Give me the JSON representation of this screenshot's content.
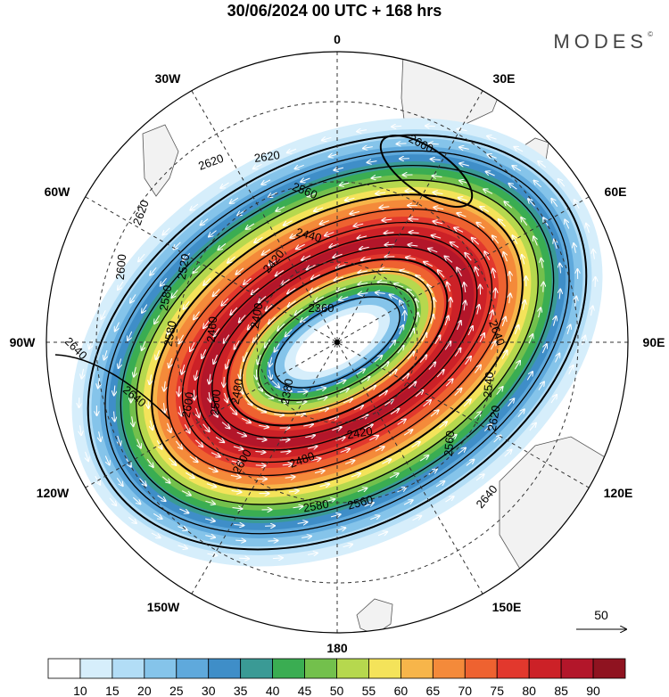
{
  "header": {
    "title": "30/06/2024  00 UTC  + 168 hrs",
    "brand": "MODES",
    "brand_mark": "©"
  },
  "map": {
    "projection": "south polar stereographic",
    "meridian_labels": [
      "0",
      "30E",
      "60E",
      "90E",
      "120E",
      "150E",
      "180",
      "150W",
      "120W",
      "90W",
      "60W",
      "30W"
    ],
    "field_shaded": "wind speed",
    "field_contoured": "geopotential height",
    "contour_labels": [
      "2660",
      "2620",
      "2620",
      "2620",
      "2560",
      "2600",
      "2440",
      "2580",
      "2420",
      "2520",
      "2400",
      "2360",
      "2460",
      "2640",
      "2580",
      "2640",
      "2480",
      "2380",
      "2540",
      "2640",
      "2600",
      "2500",
      "2620",
      "2420",
      "2560",
      "2480",
      "2580",
      "2560",
      "2640",
      "2600"
    ],
    "colors": {
      "land": "#f2f2f2",
      "coast": "#555555",
      "contour": "#000000",
      "arrows": "#ffffff"
    }
  },
  "vector_key": {
    "label": "50"
  },
  "colorbar": {
    "ticks": [
      "10",
      "15",
      "20",
      "25",
      "30",
      "35",
      "40",
      "45",
      "50",
      "55",
      "60",
      "65",
      "70",
      "75",
      "80",
      "85",
      "90"
    ],
    "colors": [
      "#ffffff",
      "#d6eefb",
      "#b2ddf6",
      "#85c4ea",
      "#5fa9dc",
      "#3f8ec8",
      "#3a9a95",
      "#3aad52",
      "#73c04c",
      "#b6d84e",
      "#f4e35a",
      "#f7b54a",
      "#f48a3a",
      "#ee6230",
      "#e2382d",
      "#cc2127",
      "#b3162a",
      "#8f1320"
    ]
  }
}
